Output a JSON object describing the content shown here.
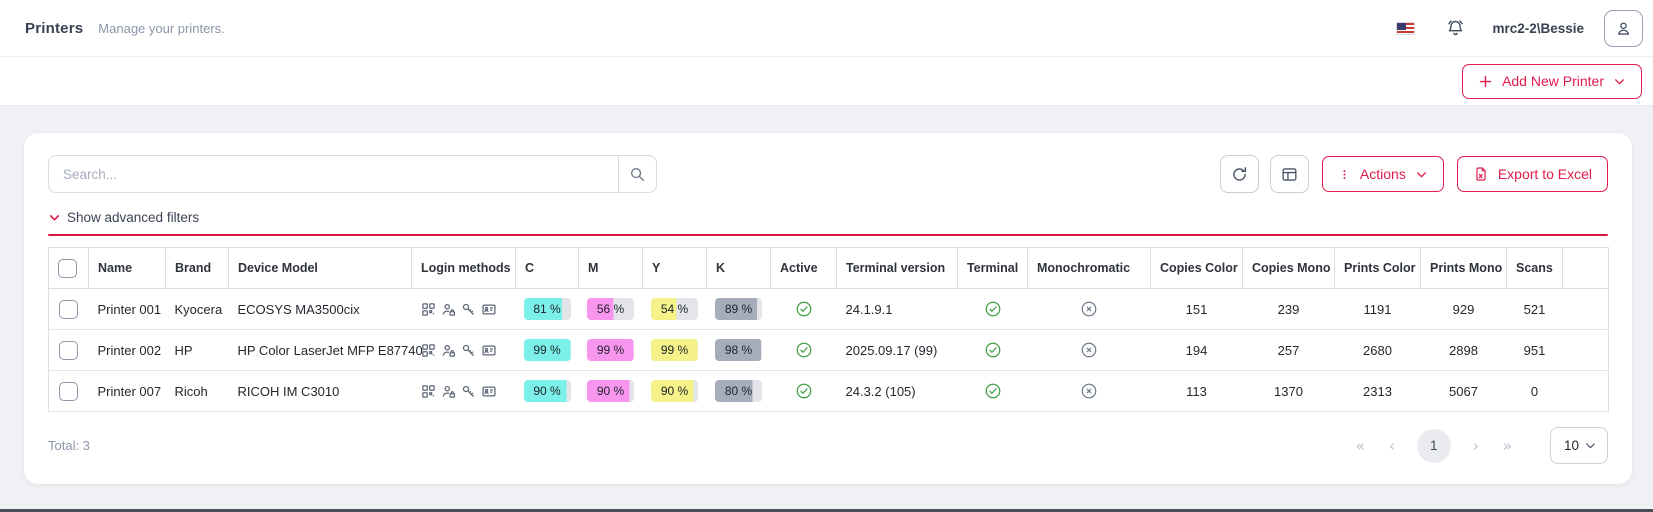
{
  "header": {
    "title": "Printers",
    "subtitle": "Manage your printers.",
    "username": "mrc2-2\\Bessie"
  },
  "toolbar": {
    "add_button_label": "Add New Printer",
    "actions_label": "Actions",
    "export_label": "Export to Excel",
    "filters_label": "Show advanced filters"
  },
  "search": {
    "placeholder": "Search..."
  },
  "table": {
    "columns": [
      "Name",
      "Brand",
      "Device Model",
      "Login methods",
      "C",
      "M",
      "Y",
      "K",
      "Active",
      "Terminal version",
      "Terminal",
      "Monochromatic",
      "Copies Color",
      "Copies Mono",
      "Prints Color",
      "Prints Mono",
      "Scans"
    ],
    "rows": [
      {
        "name": "Printer 001",
        "brand": "Kyocera",
        "model": "ECOSYS MA3500cix",
        "login_methods": [
          "qr-code",
          "user-pin",
          "key",
          "id-card"
        ],
        "c": 81,
        "m": 56,
        "y": 54,
        "k": 89,
        "active": true,
        "terminal_version": "24.1.9.1",
        "terminal": true,
        "monochromatic": false,
        "copies_color": 151,
        "copies_mono": 239,
        "prints_color": 1191,
        "prints_mono": 929,
        "scans": 521
      },
      {
        "name": "Printer 002",
        "brand": "HP",
        "model": "HP Color LaserJet MFP E87740",
        "login_methods": [
          "qr-code",
          "user-pin",
          "key",
          "id-card"
        ],
        "c": 99,
        "m": 99,
        "y": 99,
        "k": 98,
        "active": true,
        "terminal_version": "2025.09.17 (99)",
        "terminal": true,
        "monochromatic": false,
        "copies_color": 194,
        "copies_mono": 257,
        "prints_color": 2680,
        "prints_mono": 2898,
        "scans": 951
      },
      {
        "name": "Printer 007",
        "brand": "Ricoh",
        "model": "RICOH IM C3010",
        "login_methods": [
          "qr-code",
          "user-pin",
          "key",
          "id-card"
        ],
        "c": 90,
        "m": 90,
        "y": 90,
        "k": 80,
        "active": true,
        "terminal_version": "24.3.2 (105)",
        "terminal": true,
        "monochromatic": false,
        "copies_color": 113,
        "copies_mono": 1370,
        "prints_color": 2313,
        "prints_mono": 5067,
        "scans": 0
      }
    ],
    "percent_suffix": " %"
  },
  "pagination": {
    "total_label": "Total: 3",
    "first": "«",
    "prev": "‹",
    "next": "›",
    "last": "»",
    "current_page": "1",
    "page_size": "10"
  },
  "colors": {
    "accent": "#e21b4c",
    "cyan": "#7bf0e9",
    "magenta": "#f895ee",
    "yellow": "#f5f28a",
    "key_black": "#a6adba",
    "badge_rest": "#e3e5ea",
    "success_green": "#43a047",
    "neutral_gray": "#717a8a"
  }
}
